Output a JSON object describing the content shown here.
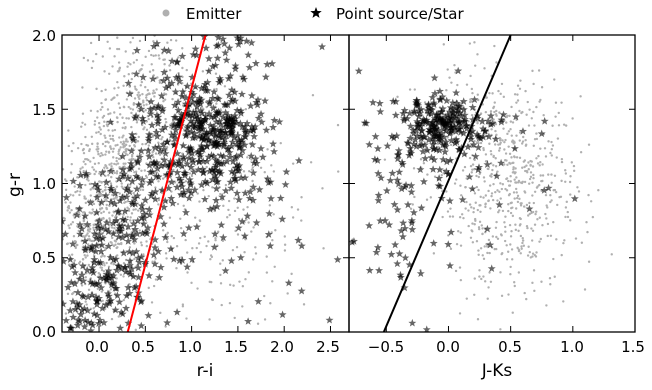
{
  "figure": {
    "legend": [
      {
        "label": "Emitter",
        "marker": "dot",
        "color": "#b0b0b0"
      },
      {
        "label": "Point source/Star",
        "marker": "star",
        "color": "#000000"
      }
    ],
    "legend_placement": "top-center, above panels"
  },
  "chart_data": [
    {
      "type": "scatter",
      "panel": "left",
      "xlabel": "r-i",
      "ylabel": "g-r",
      "xlim": [
        -0.4,
        2.7
      ],
      "ylim": [
        0.0,
        2.0
      ],
      "xticks": [
        0.0,
        0.5,
        1.0,
        1.5,
        2.0,
        2.5
      ],
      "xtick_labels": [
        "0.0",
        "0.5",
        "1.0",
        "1.5",
        "2.0",
        "2.5"
      ],
      "yticks": [
        0.0,
        0.5,
        1.0,
        1.5,
        2.0
      ],
      "ytick_labels": [
        "0.0",
        "0.5",
        "1.0",
        "1.5",
        "2.0"
      ],
      "grid": false,
      "series": [
        {
          "name": "Emitter",
          "marker": "dot",
          "color": "#b0b0b0",
          "clusters": [
            {
              "center": [
                0.0,
                0.75
              ],
              "spread": [
                0.22,
                0.35
              ],
              "n": 520
            },
            {
              "center": [
                0.3,
                1.25
              ],
              "spread": [
                0.2,
                0.35
              ],
              "n": 260
            },
            {
              "center": [
                0.6,
                1.55
              ],
              "spread": [
                0.3,
                0.3
              ],
              "n": 180
            },
            {
              "center": [
                1.0,
                0.9
              ],
              "spread": [
                0.5,
                0.45
              ],
              "n": 200
            },
            {
              "center": [
                1.6,
                0.7
              ],
              "spread": [
                0.5,
                0.45
              ],
              "n": 90
            }
          ]
        },
        {
          "name": "Point source/Star",
          "marker": "star",
          "color": "#000000",
          "clusters": [
            {
              "center": [
                1.25,
                1.38
              ],
              "spread": [
                0.28,
                0.13
              ],
              "n": 260
            },
            {
              "center": [
                0.85,
                1.55
              ],
              "spread": [
                0.3,
                0.25
              ],
              "n": 90
            },
            {
              "center": [
                1.0,
                1.08
              ],
              "spread": [
                0.4,
                0.1
              ],
              "n": 130
            },
            {
              "center": [
                0.1,
                0.55
              ],
              "spread": [
                0.25,
                0.3
              ],
              "n": 170
            },
            {
              "center": [
                -0.1,
                0.12
              ],
              "spread": [
                0.15,
                0.12
              ],
              "n": 55
            },
            {
              "center": [
                0.55,
                0.8
              ],
              "spread": [
                0.3,
                0.3
              ],
              "n": 80
            },
            {
              "center": [
                1.6,
                0.75
              ],
              "spread": [
                0.5,
                0.4
              ],
              "n": 50
            },
            {
              "center": [
                1.3,
                1.85
              ],
              "spread": [
                0.4,
                0.12
              ],
              "n": 35
            }
          ]
        }
      ],
      "lines": [
        {
          "color": "#ff0000",
          "points": [
            [
              0.31,
              0.0
            ],
            [
              1.15,
              2.0
            ]
          ]
        }
      ]
    },
    {
      "type": "scatter",
      "panel": "right",
      "xlabel": "J-Ks",
      "ylabel": "",
      "xlim": [
        -0.8,
        1.5
      ],
      "ylim": [
        0.0,
        2.0
      ],
      "xticks": [
        -0.5,
        0.0,
        0.5,
        1.0,
        1.5
      ],
      "xtick_labels": [
        "−0.5",
        "0.0",
        "0.5",
        "1.0",
        "1.5"
      ],
      "yticks": [
        0.0,
        0.5,
        1.0,
        1.5,
        2.0
      ],
      "grid": false,
      "series": [
        {
          "name": "Emitter",
          "marker": "dot",
          "color": "#b0b0b0",
          "clusters": [
            {
              "center": [
                0.45,
                0.95
              ],
              "spread": [
                0.3,
                0.35
              ],
              "n": 560
            },
            {
              "center": [
                0.2,
                1.45
              ],
              "spread": [
                0.3,
                0.2
              ],
              "n": 120
            }
          ]
        },
        {
          "name": "Point source/Star",
          "marker": "star",
          "color": "#000000",
          "clusters": [
            {
              "center": [
                -0.05,
                1.4
              ],
              "spread": [
                0.18,
                0.1
              ],
              "n": 220
            },
            {
              "center": [
                -0.3,
                1.2
              ],
              "spread": [
                0.25,
                0.2
              ],
              "n": 70
            },
            {
              "center": [
                -0.4,
                0.55
              ],
              "spread": [
                0.2,
                0.25
              ],
              "n": 35
            },
            {
              "center": [
                0.25,
                1.05
              ],
              "spread": [
                0.35,
                0.3
              ],
              "n": 40
            }
          ]
        }
      ],
      "lines": [
        {
          "color": "#000000",
          "points": [
            [
              -0.52,
              0.0
            ],
            [
              0.5,
              2.0
            ]
          ]
        }
      ]
    }
  ]
}
